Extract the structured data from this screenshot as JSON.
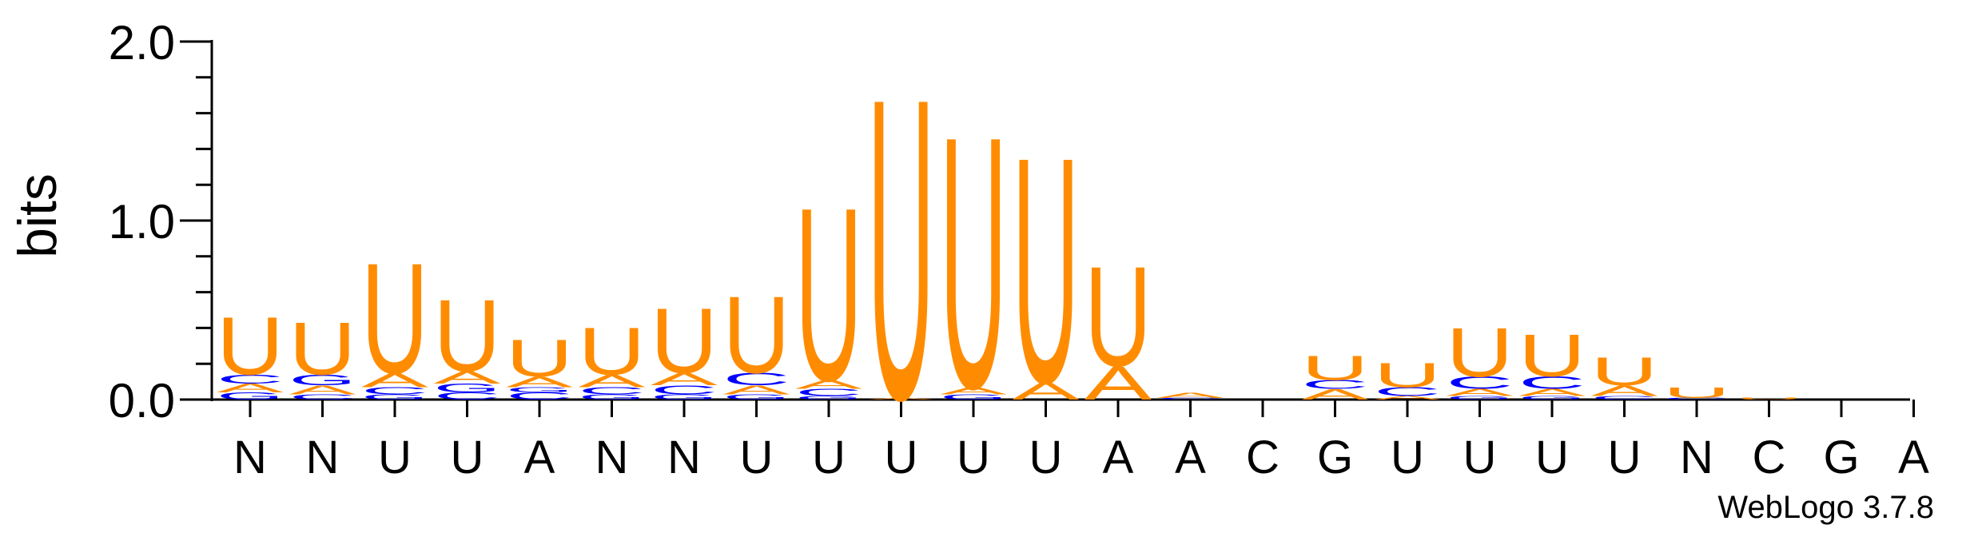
{
  "chart_data": {
    "type": "sequence-logo",
    "ylabel": "bits",
    "ylim": [
      0,
      2.0
    ],
    "yticks": [
      "0.0",
      "1.0",
      "2.0"
    ],
    "positions": [
      "N",
      "N",
      "U",
      "U",
      "A",
      "N",
      "N",
      "U",
      "U",
      "U",
      "U",
      "U",
      "A",
      "A",
      "C",
      "G",
      "U",
      "U",
      "U",
      "U",
      "N",
      "C",
      "G",
      "A"
    ],
    "footer": "WebLogo 3.7.8",
    "colors": {
      "U": "#FF8C00",
      "A": "#FF8C00",
      "C": "#0000FF",
      "G": "#0000FF"
    },
    "stacks": [
      [
        {
          "l": "G",
          "h": 0.04
        },
        {
          "l": "A",
          "h": 0.05
        },
        {
          "l": "C",
          "h": 0.05
        },
        {
          "l": "U",
          "h": 0.33
        }
      ],
      [
        {
          "l": "C",
          "h": 0.03
        },
        {
          "l": "A",
          "h": 0.05
        },
        {
          "l": "G",
          "h": 0.06
        },
        {
          "l": "U",
          "h": 0.3
        }
      ],
      [
        {
          "l": "G",
          "h": 0.03
        },
        {
          "l": "C",
          "h": 0.04
        },
        {
          "l": "A",
          "h": 0.08
        },
        {
          "l": "U",
          "h": 0.63
        }
      ],
      [
        {
          "l": "C",
          "h": 0.04
        },
        {
          "l": "G",
          "h": 0.05
        },
        {
          "l": "A",
          "h": 0.07
        },
        {
          "l": "U",
          "h": 0.41
        }
      ],
      [
        {
          "l": "C",
          "h": 0.04
        },
        {
          "l": "G",
          "h": 0.03
        },
        {
          "l": "A",
          "h": 0.06
        },
        {
          "l": "U",
          "h": 0.21
        }
      ],
      [
        {
          "l": "G",
          "h": 0.03
        },
        {
          "l": "C",
          "h": 0.04
        },
        {
          "l": "A",
          "h": 0.07
        },
        {
          "l": "U",
          "h": 0.27
        }
      ],
      [
        {
          "l": "G",
          "h": 0.03
        },
        {
          "l": "C",
          "h": 0.05
        },
        {
          "l": "A",
          "h": 0.07
        },
        {
          "l": "U",
          "h": 0.37
        }
      ],
      [
        {
          "l": "G",
          "h": 0.03
        },
        {
          "l": "A",
          "h": 0.05
        },
        {
          "l": "C",
          "h": 0.07
        },
        {
          "l": "U",
          "h": 0.44
        }
      ],
      [
        {
          "l": "G",
          "h": 0.02
        },
        {
          "l": "C",
          "h": 0.04
        },
        {
          "l": "A",
          "h": 0.05
        },
        {
          "l": "U",
          "h": 0.99
        }
      ],
      [
        {
          "l": "A",
          "h": 0.01
        },
        {
          "l": "U",
          "h": 1.72
        }
      ],
      [
        {
          "l": "G",
          "h": 0.03
        },
        {
          "l": "A",
          "h": 0.04
        },
        {
          "l": "U",
          "h": 1.44
        }
      ],
      [
        {
          "l": "A",
          "h": 0.1
        },
        {
          "l": "U",
          "h": 1.29
        }
      ],
      [
        {
          "l": "A",
          "h": 0.19
        },
        {
          "l": "U",
          "h": 0.57
        }
      ],
      [
        {
          "l": "C",
          "h": 0.01
        },
        {
          "l": "A",
          "h": 0.03
        }
      ],
      [],
      [
        {
          "l": "A",
          "h": 0.06
        },
        {
          "l": "C",
          "h": 0.05
        },
        {
          "l": "U",
          "h": 0.14
        }
      ],
      [
        {
          "l": "A",
          "h": 0.02
        },
        {
          "l": "C",
          "h": 0.05
        },
        {
          "l": "U",
          "h": 0.14
        }
      ],
      [
        {
          "l": "G",
          "h": 0.02
        },
        {
          "l": "A",
          "h": 0.04
        },
        {
          "l": "C",
          "h": 0.07
        },
        {
          "l": "U",
          "h": 0.28
        }
      ],
      [
        {
          "l": "G",
          "h": 0.02
        },
        {
          "l": "A",
          "h": 0.04
        },
        {
          "l": "C",
          "h": 0.07
        },
        {
          "l": "U",
          "h": 0.24
        }
      ],
      [
        {
          "l": "C",
          "h": 0.02
        },
        {
          "l": "A",
          "h": 0.06
        },
        {
          "l": "U",
          "h": 0.16
        }
      ],
      [
        {
          "l": "C",
          "h": 0.01
        },
        {
          "l": "U",
          "h": 0.06
        }
      ],
      [
        {
          "l": "U",
          "h": 0.01
        }
      ],
      [],
      []
    ]
  }
}
